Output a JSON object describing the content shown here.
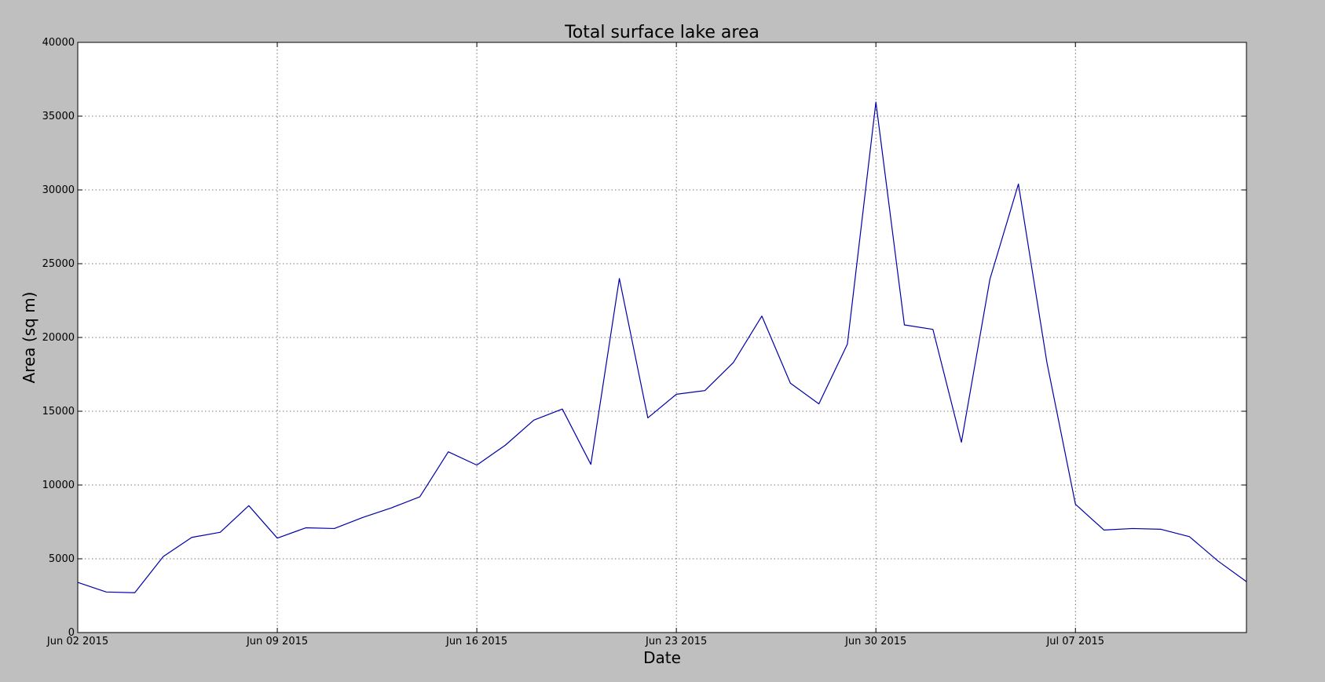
{
  "chart_data": {
    "type": "line",
    "title": "Total surface lake area",
    "xlabel": "Date",
    "ylabel": "Area (sq m)",
    "xlim": [
      "2015-06-02",
      "2015-07-13"
    ],
    "ylim": [
      0,
      40000
    ],
    "grid": true,
    "line_color": "#0000aa",
    "background_color": "#bfbfbf",
    "plot_background_color": "#ffffff",
    "x_ticks": [
      {
        "date": "2015-06-02",
        "label": "Jun 02 2015"
      },
      {
        "date": "2015-06-09",
        "label": "Jun 09 2015"
      },
      {
        "date": "2015-06-16",
        "label": "Jun 16 2015"
      },
      {
        "date": "2015-06-23",
        "label": "Jun 23 2015"
      },
      {
        "date": "2015-06-30",
        "label": "Jun 30 2015"
      },
      {
        "date": "2015-07-07",
        "label": "Jul 07 2015"
      }
    ],
    "y_ticks": [
      0,
      5000,
      10000,
      15000,
      20000,
      25000,
      30000,
      35000,
      40000
    ],
    "series": [
      {
        "x": [
          "2015-06-02",
          "2015-06-03",
          "2015-06-04",
          "2015-06-05",
          "2015-06-06",
          "2015-06-07",
          "2015-06-08",
          "2015-06-09",
          "2015-06-10",
          "2015-06-11",
          "2015-06-12",
          "2015-06-13",
          "2015-06-14",
          "2015-06-15",
          "2015-06-16",
          "2015-06-17",
          "2015-06-18",
          "2015-06-19",
          "2015-06-20",
          "2015-06-21",
          "2015-06-22",
          "2015-06-23",
          "2015-06-24",
          "2015-06-25",
          "2015-06-26",
          "2015-06-27",
          "2015-06-28",
          "2015-06-29",
          "2015-06-30",
          "2015-07-01",
          "2015-07-02",
          "2015-07-03",
          "2015-07-04",
          "2015-07-05",
          "2015-07-06",
          "2015-07-07",
          "2015-07-08",
          "2015-07-09",
          "2015-07-10",
          "2015-07-11",
          "2015-07-12",
          "2015-07-13"
        ],
        "values": [
          3400,
          2750,
          2700,
          5150,
          6450,
          6800,
          8600,
          6400,
          7100,
          7050,
          7800,
          8450,
          9200,
          12250,
          11350,
          12700,
          14400,
          15150,
          11400,
          24000,
          14550,
          16150,
          16400,
          18300,
          21450,
          16900,
          15500,
          19550,
          35950,
          20850,
          20550,
          12900,
          23950,
          30400,
          18300,
          8700,
          6950,
          7050,
          7000,
          6500,
          4850,
          3450
        ]
      }
    ]
  }
}
